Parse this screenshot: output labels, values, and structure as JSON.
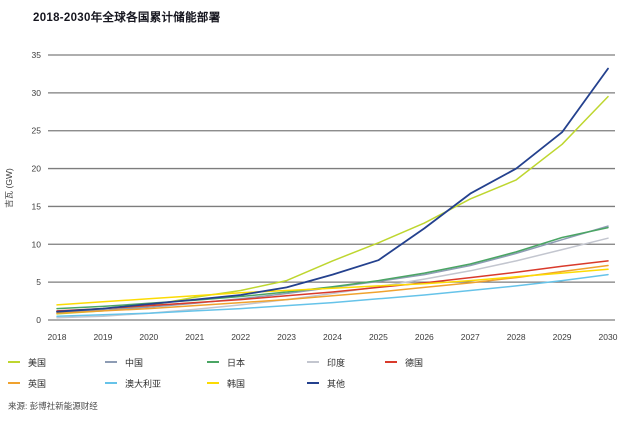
{
  "page": {
    "title": "2018-2030年全球各国累计储能部署",
    "source": "来源: 彭博社新能源财经"
  },
  "chart_data": {
    "type": "line",
    "title": "2018-2030年全球各国累计储能部署",
    "xlabel": "",
    "ylabel": "吉瓦 (GW)",
    "ylim": [
      0,
      35
    ],
    "ytick_step": 5,
    "grid": true,
    "legend_position": "bottom",
    "gridline_color": "#7d7d7d",
    "tick_color": "#3c3c3c",
    "categories": [
      "2018",
      "2019",
      "2020",
      "2021",
      "2022",
      "2023",
      "2024",
      "2025",
      "2026",
      "2027",
      "2028",
      "2029",
      "2030"
    ],
    "series": [
      {
        "id": "us",
        "name": "美国",
        "color": "#bed62f",
        "width": 1.5,
        "values": [
          0.8,
          1.2,
          1.9,
          3.0,
          3.9,
          5.2,
          7.8,
          10.2,
          12.8,
          16.0,
          18.5,
          23.2,
          29.5
        ]
      },
      {
        "id": "china",
        "name": "中国",
        "color": "#8d9cb4",
        "width": 1.5,
        "values": [
          1.0,
          1.3,
          1.7,
          2.2,
          2.8,
          3.5,
          4.3,
          5.1,
          6.0,
          7.2,
          8.8,
          10.6,
          12.4
        ]
      },
      {
        "id": "japan",
        "name": "日本",
        "color": "#4aa564",
        "width": 1.5,
        "values": [
          1.5,
          1.8,
          2.2,
          2.6,
          3.1,
          3.7,
          4.4,
          5.2,
          6.2,
          7.4,
          9.0,
          10.9,
          12.2
        ]
      },
      {
        "id": "india",
        "name": "印度",
        "color": "#c3c6cf",
        "width": 1.5,
        "values": [
          0.3,
          0.5,
          0.9,
          1.4,
          2.0,
          2.7,
          3.5,
          4.4,
          5.4,
          6.5,
          7.8,
          9.3,
          10.8
        ]
      },
      {
        "id": "germany",
        "name": "德国",
        "color": "#d93a2b",
        "width": 1.5,
        "values": [
          1.2,
          1.5,
          1.9,
          2.3,
          2.7,
          3.2,
          3.7,
          4.3,
          4.9,
          5.6,
          6.3,
          7.1,
          7.8
        ]
      },
      {
        "id": "uk",
        "name": "英国",
        "color": "#f0a22e",
        "width": 1.5,
        "values": [
          0.9,
          1.2,
          1.5,
          1.9,
          2.3,
          2.7,
          3.2,
          3.7,
          4.3,
          4.9,
          5.6,
          6.4,
          7.2
        ]
      },
      {
        "id": "australia",
        "name": "澳大利亚",
        "color": "#66c3e9",
        "width": 1.5,
        "values": [
          0.5,
          0.7,
          0.9,
          1.2,
          1.5,
          1.9,
          2.3,
          2.8,
          3.3,
          3.9,
          4.5,
          5.2,
          6.0
        ]
      },
      {
        "id": "korea",
        "name": "韩国",
        "color": "#fcdb03",
        "width": 1.5,
        "values": [
          2.0,
          2.4,
          2.8,
          3.2,
          3.6,
          3.9,
          4.2,
          4.5,
          4.8,
          5.2,
          5.7,
          6.2,
          6.7
        ]
      },
      {
        "id": "others",
        "name": "其他",
        "color": "#24418e",
        "width": 1.8,
        "values": [
          1.1,
          1.5,
          2.1,
          2.7,
          3.3,
          4.3,
          6.0,
          7.9,
          12.1,
          16.7,
          20.0,
          24.8,
          33.2
        ]
      }
    ]
  }
}
